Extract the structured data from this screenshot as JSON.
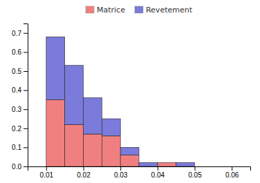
{
  "chart_data": {
    "type": "histogram",
    "stacked": true,
    "bins": [
      0.005,
      0.01,
      0.015,
      0.02,
      0.025,
      0.03,
      0.035,
      0.04,
      0.045,
      0.05,
      0.055,
      0.06
    ],
    "series": [
      {
        "name": "Matrice",
        "color": "#f08080",
        "values": [
          0.0,
          0.35,
          0.22,
          0.17,
          0.16,
          0.06,
          0.0,
          0.02,
          0.0,
          0.0,
          0.0
        ]
      },
      {
        "name": "Revetement",
        "color": "#7b7bdb",
        "values": [
          0.0,
          0.33,
          0.31,
          0.19,
          0.09,
          0.04,
          0.02,
          0.0,
          0.02,
          0.0,
          0.0
        ]
      }
    ],
    "xlim": [
      0.005,
      0.065
    ],
    "ylim": [
      0.0,
      0.75
    ],
    "xticks": [
      0.01,
      0.02,
      0.03,
      0.04,
      0.05,
      0.06
    ],
    "yticks": [
      {
        "value": 0.0,
        "label": "0.0"
      },
      0.1,
      0.2,
      0.3,
      0.4,
      0.5,
      0.6,
      0.7
    ],
    "legend": "top"
  }
}
